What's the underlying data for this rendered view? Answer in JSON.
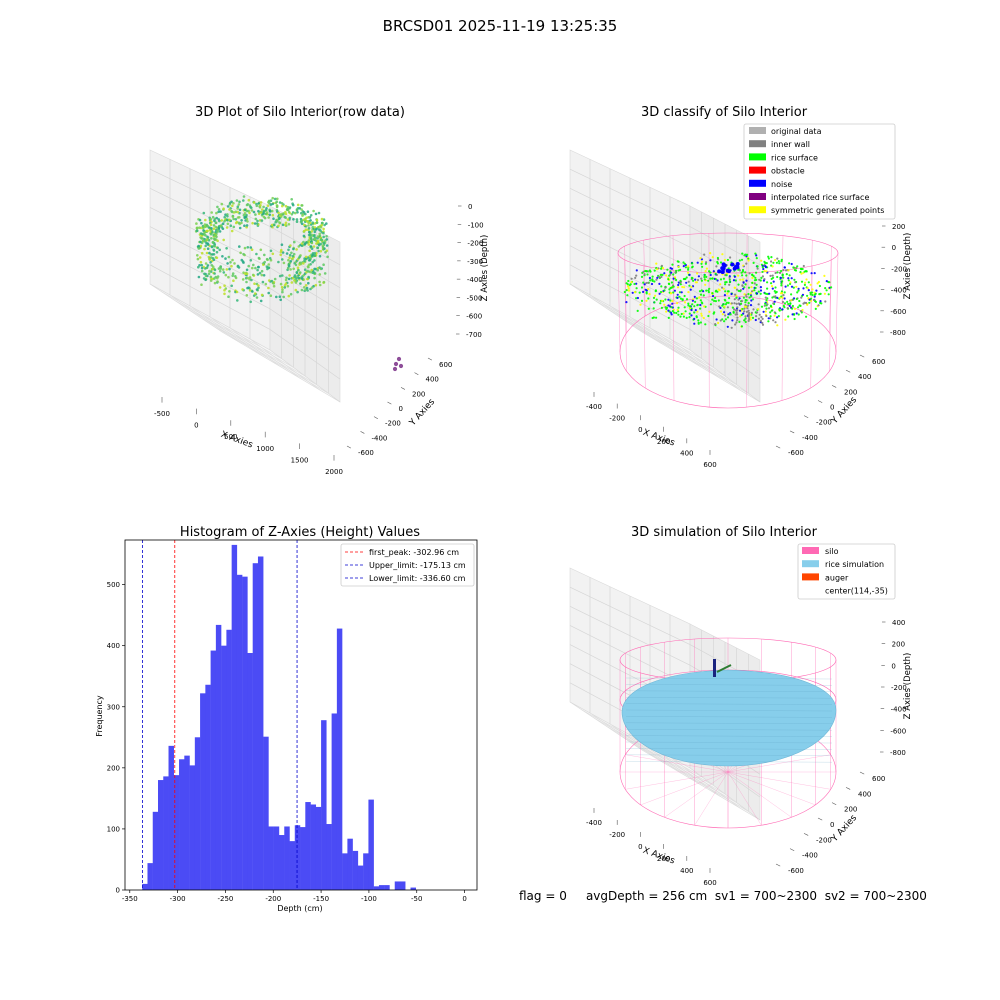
{
  "figure": {
    "suptitle": "BRCSD01 2025-11-19 13:25:35",
    "footer": {
      "flag": "flag = 0",
      "avgdepth": "avgDepth = 256 cm",
      "sv1": "sv1 = 700~2300",
      "sv2": "sv2 = 700~2300"
    }
  },
  "colors": {
    "histogram_bar": "#4b4bf5",
    "first_peak_line": "#ff0000",
    "limit_line": "#0000cc",
    "silo_wire": "#ff69b4",
    "rice_simulation": "#87ceeb",
    "auger": "#ff4500",
    "viridis_green": "#7ad151",
    "viridis_teal": "#22a884",
    "viridis_yellow": "#bddf26",
    "inner_wall": "#808080",
    "rice_surface": "#00ff00",
    "obstacle": "#ff0000",
    "noise": "#0000ff",
    "interpolated": "#800080",
    "symmetric": "#ffff00",
    "original": "#b0b0b0",
    "pane": "#f2f2f2"
  },
  "chart_data": [
    {
      "type": "scatter",
      "title": "3D Plot of Silo Interior(row data)",
      "xlabel": "X Axies",
      "ylabel": "Y Axies",
      "zlabel": "Z Axies (Depth)",
      "x_ticks": [
        "-500",
        "0",
        "500",
        "1000",
        "1500",
        "2000"
      ],
      "y_ticks": [
        "-600",
        "-400",
        "-200",
        "0",
        "200",
        "400",
        "600"
      ],
      "z_ticks": [
        "0",
        "-100",
        "-200",
        "-300",
        "-400",
        "-500",
        "-600",
        "-700"
      ],
      "xlim": [
        -650,
        2050
      ],
      "ylim": [
        -650,
        650
      ],
      "zlim": [
        -750,
        40
      ],
      "annotations": [
        "dense ring of points near x -500..500 colored by depth (viridis)",
        "small cluster of purple points near x 1800, y -300"
      ]
    },
    {
      "type": "scatter",
      "title": "3D classify of Silo Interior",
      "xlabel": "X Axies",
      "ylabel": "Y Axies",
      "zlabel": "Z Axies (Depth)",
      "x_ticks": [
        "-400",
        "-200",
        "0",
        "200",
        "400",
        "600"
      ],
      "y_ticks": [
        "-600",
        "-400",
        "-200",
        "0",
        "200",
        "400",
        "600"
      ],
      "z_ticks": [
        "200",
        "0",
        "-200",
        "-400",
        "-600",
        "-800"
      ],
      "xlim": [
        -550,
        750
      ],
      "ylim": [
        -650,
        650
      ],
      "zlim": [
        -900,
        320
      ],
      "legend_position": "upper right",
      "legend": [
        {
          "label": "original data",
          "color": "#b0b0b0"
        },
        {
          "label": "inner wall",
          "color": "#808080"
        },
        {
          "label": "rice surface",
          "color": "#00ff00"
        },
        {
          "label": "obstacle",
          "color": "#ff0000"
        },
        {
          "label": "noise",
          "color": "#0000ff"
        },
        {
          "label": "interpolated rice surface",
          "color": "#800080"
        },
        {
          "label": "symmetric generated points",
          "color": "#ffff00"
        }
      ]
    },
    {
      "type": "bar",
      "title": "Histogram of Z-Axies (Height) Values",
      "xlabel": "Depth (cm)",
      "ylabel": "Frequency",
      "x_ticks": [
        -350,
        -300,
        -250,
        -200,
        -150,
        -100,
        -50,
        0
      ],
      "y_ticks": [
        0,
        100,
        200,
        300,
        400,
        500
      ],
      "xlim": [
        -355,
        13
      ],
      "ylim": [
        0,
        573
      ],
      "bin_start": -337,
      "bin_width": 5.5,
      "values": [
        10,
        44,
        128,
        180,
        186,
        236,
        188,
        214,
        220,
        204,
        250,
        322,
        336,
        392,
        434,
        400,
        426,
        565,
        516,
        513,
        388,
        535,
        546,
        251,
        104,
        104,
        90,
        104,
        80,
        106,
        103,
        144,
        140,
        136,
        278,
        108,
        289,
        428,
        60,
        84,
        64,
        40,
        60,
        148,
        6,
        8,
        8,
        0,
        14,
        14,
        0,
        4,
        0
      ],
      "vlines": [
        {
          "label": "first_peak: -302.96 cm",
          "x": -302.96,
          "color": "#ff0000"
        },
        {
          "label": "Upper_limit: -175.13 cm",
          "x": -175.13,
          "color": "#0000cc"
        },
        {
          "label": "Lower_limit: -336.60 cm",
          "x": -336.6,
          "color": "#0000cc"
        }
      ],
      "legend_position": "upper right"
    },
    {
      "type": "scatter",
      "title": "3D simulation of Silo Interior",
      "xlabel": "X Axies",
      "ylabel": "Y Axies",
      "zlabel": "Z Axies (Depth)",
      "x_ticks": [
        "-400",
        "-200",
        "0",
        "200",
        "400",
        "600"
      ],
      "y_ticks": [
        "-600",
        "-400",
        "-200",
        "0",
        "200",
        "400",
        "600"
      ],
      "z_ticks": [
        "400",
        "200",
        "0",
        "-200",
        "-400",
        "-600",
        "-800"
      ],
      "xlim": [
        -550,
        750
      ],
      "ylim": [
        -650,
        650
      ],
      "zlim": [
        -900,
        450
      ],
      "legend_position": "upper right",
      "legend": [
        {
          "label": "silo",
          "color": "#ff69b4"
        },
        {
          "label": "rice simulation",
          "color": "#87ceeb"
        },
        {
          "label": "auger",
          "color": "#ff4500"
        },
        {
          "label": "center(114,-35)",
          "color": ""
        }
      ]
    }
  ]
}
